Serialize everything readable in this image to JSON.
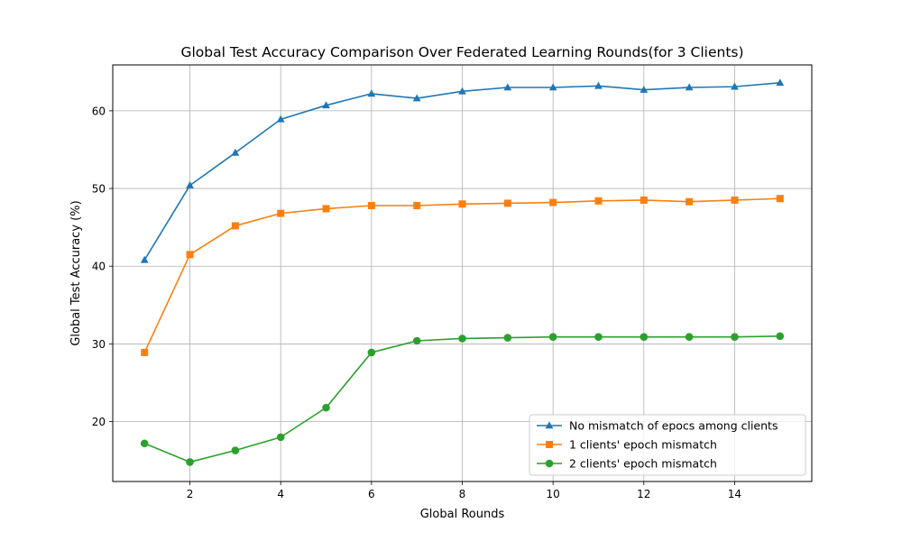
{
  "chart_data": {
    "type": "line",
    "title": "Global Test Accuracy Comparison Over Federated Learning Rounds(for 3 Clients)",
    "xlabel": "Global Rounds",
    "ylabel": "Global Test Accuracy (%)",
    "xlim": [
      0.3,
      15.7
    ],
    "ylim": [
      12.3,
      65.9
    ],
    "xticks": [
      2,
      4,
      6,
      8,
      10,
      12,
      14
    ],
    "yticks": [
      20,
      30,
      40,
      50,
      60
    ],
    "grid": true,
    "legend_position": "lower-right",
    "x": [
      1,
      2,
      3,
      4,
      5,
      6,
      7,
      8,
      9,
      10,
      11,
      12,
      13,
      14,
      15
    ],
    "series": [
      {
        "name": "No mismatch of epocs among clients",
        "color": "#1f77b4",
        "marker": "triangle",
        "values": [
          40.8,
          50.4,
          54.6,
          58.9,
          60.7,
          62.2,
          61.6,
          62.5,
          63.0,
          63.0,
          63.2,
          62.7,
          63.0,
          63.1,
          63.6
        ]
      },
      {
        "name": "1 clients' epoch mismatch",
        "color": "#ff7f0e",
        "marker": "square",
        "values": [
          28.9,
          41.5,
          45.2,
          46.8,
          47.4,
          47.8,
          47.8,
          48.0,
          48.1,
          48.2,
          48.4,
          48.5,
          48.3,
          48.5,
          48.7
        ]
      },
      {
        "name": "2 clients' epoch mismatch",
        "color": "#2ca02c",
        "marker": "circle",
        "values": [
          17.2,
          14.8,
          16.3,
          18.0,
          21.8,
          28.9,
          30.4,
          30.7,
          30.8,
          30.9,
          30.9,
          30.9,
          30.9,
          30.9,
          31.0
        ]
      }
    ]
  }
}
